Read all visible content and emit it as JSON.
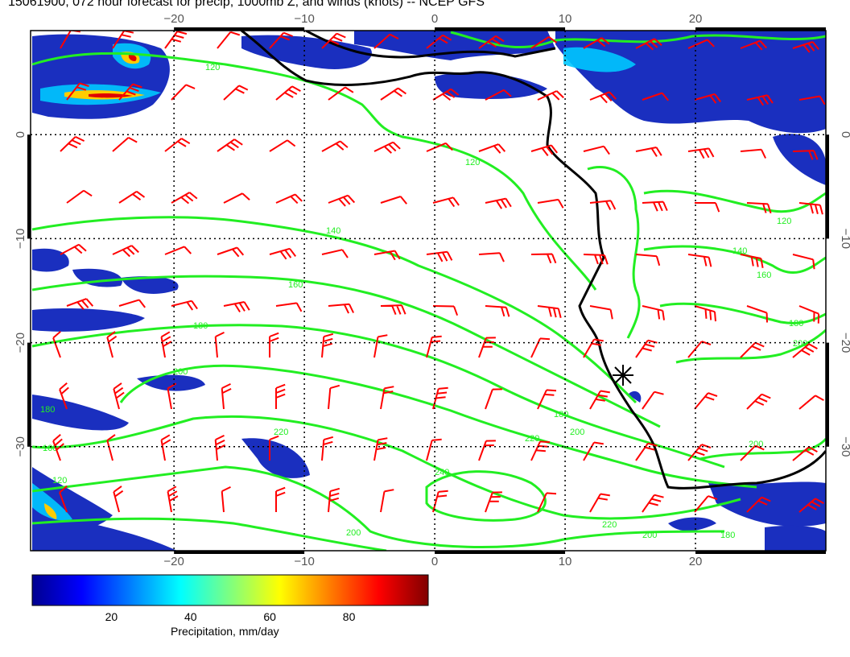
{
  "title": "15061900, 072 hour forecast for precip, 1000mb Z, and winds (knots) -- NCEP GFS",
  "map": {
    "lon_range": [
      -31,
      30
    ],
    "lat_range": [
      -40,
      10
    ],
    "lon_ticks": [
      -20,
      -10,
      0,
      10,
      20
    ],
    "lat_ticks": [
      0,
      -10,
      -20,
      -30
    ],
    "grid": "dotted",
    "station_marker": {
      "lon": 15,
      "lat": -23.5
    },
    "contours": [
      {
        "label": "120"
      },
      {
        "label": "140"
      },
      {
        "label": "160"
      },
      {
        "label": "180"
      },
      {
        "label": "200"
      },
      {
        "label": "220"
      },
      {
        "label": "240"
      }
    ]
  },
  "colorbar": {
    "label": "Precipitation, mm/day",
    "range": [
      0,
      100
    ],
    "ticks": [
      "20",
      "40",
      "60",
      "80"
    ],
    "tick_values": [
      20,
      40,
      60,
      80
    ]
  },
  "colors": {
    "wind_barbs": "#ff0000",
    "contours": "#00e600",
    "coastline": "#000000",
    "precip_low": "#00008f",
    "precip_high": "#800000"
  }
}
